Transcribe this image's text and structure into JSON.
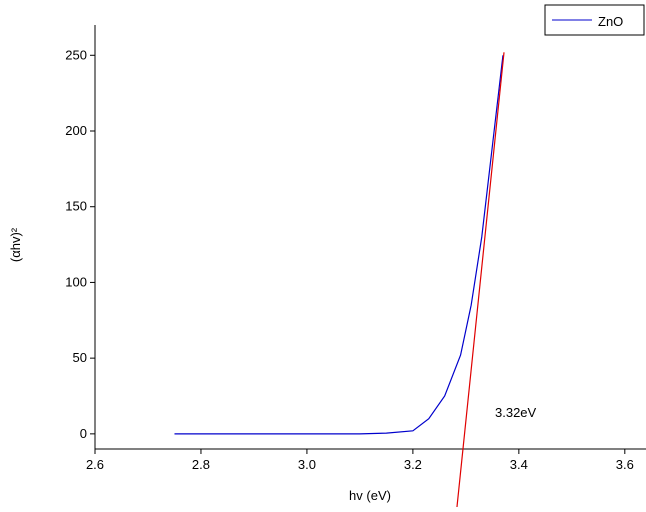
{
  "chart_data": {
    "type": "line",
    "xlabel": "hv (eV)",
    "ylabel": "(αhv)²",
    "xlim": [
      2.6,
      3.64
    ],
    "ylim": [
      -10,
      270
    ],
    "xticks": [
      2.6,
      2.8,
      {
        "value": 3,
        "label": "3.0"
      },
      3.2,
      3.4,
      3.6
    ],
    "yticks": [
      0,
      50,
      100,
      150,
      200,
      250
    ],
    "series": [
      {
        "name": "ZnO",
        "color": "#0000cc",
        "x": [
          2.75,
          2.9,
          3.0,
          3.1,
          3.15,
          3.2,
          3.23,
          3.26,
          3.29,
          3.31,
          3.33,
          3.35,
          3.37
        ],
        "values": [
          0,
          0,
          0,
          0,
          0.5,
          2,
          10,
          25,
          52,
          85,
          130,
          190,
          250
        ]
      }
    ],
    "fit_line": {
      "color": "#e00000",
      "x": [
        3.283,
        3.372
      ],
      "values": [
        -49,
        252
      ]
    },
    "annotation": "3.32eV",
    "legend": "top-right"
  }
}
